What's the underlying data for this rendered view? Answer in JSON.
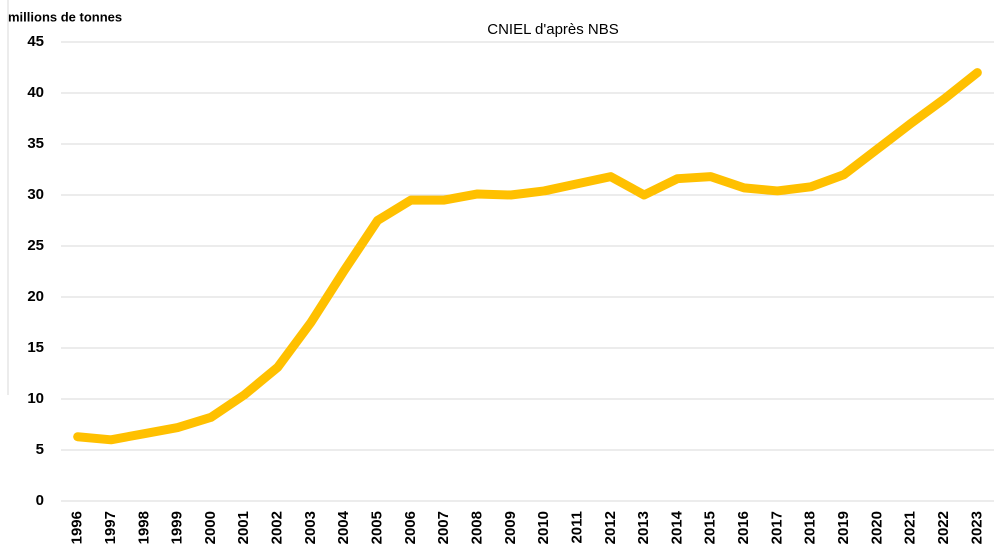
{
  "chart_data": {
    "type": "line",
    "ylabel": "millions de tonnes",
    "source": "CNIEL d'après NBS",
    "categories": [
      "1996",
      "1997",
      "1998",
      "1999",
      "2000",
      "2001",
      "2002",
      "2003",
      "2004",
      "2005",
      "2006",
      "2007",
      "2008",
      "2009",
      "2010",
      "2011",
      "2012",
      "2013",
      "2014",
      "2015",
      "2016",
      "2017",
      "2018",
      "2019",
      "2020",
      "2021",
      "2022",
      "2023"
    ],
    "values": [
      6.3,
      6.0,
      6.6,
      7.2,
      8.2,
      10.4,
      13.1,
      17.5,
      22.6,
      27.5,
      29.5,
      29.5,
      30.1,
      30.0,
      30.4,
      31.1,
      31.8,
      30.0,
      31.6,
      31.8,
      30.7,
      30.4,
      30.8,
      32.0,
      34.5,
      37.0,
      39.4,
      42.0
    ],
    "color": "#ffc000",
    "ylim": [
      0,
      45
    ],
    "yticks": [
      0,
      5,
      10,
      15,
      20,
      25,
      30,
      35,
      40,
      45
    ],
    "grid": true
  }
}
